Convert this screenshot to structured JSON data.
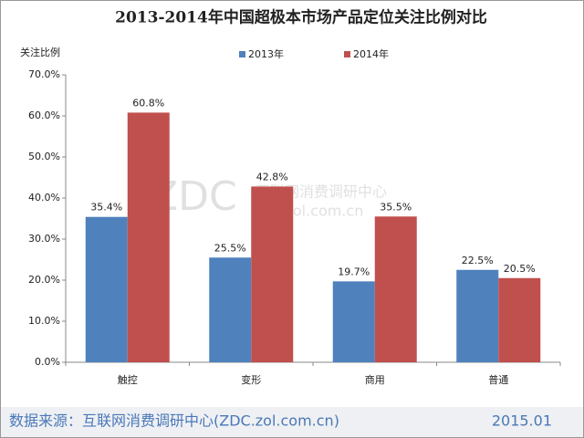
{
  "chart_data": {
    "type": "bar",
    "title": "2013-2014年中国超极本市场产品定位关注比例对比",
    "y_label": "关注比例",
    "categories": [
      "触控",
      "变形",
      "商用",
      "普通"
    ],
    "series": [
      {
        "name": "2013年",
        "color": "#4f81bd",
        "values": [
          35.4,
          25.5,
          19.7,
          22.5
        ],
        "value_labels": [
          "35.4%",
          "25.5%",
          "19.7%",
          "22.5%"
        ]
      },
      {
        "name": "2014年",
        "color": "#c0504d",
        "values": [
          60.8,
          42.8,
          35.5,
          20.5
        ],
        "value_labels": [
          "60.8%",
          "42.8%",
          "35.5%",
          "20.5%"
        ]
      }
    ],
    "ylim": [
      0,
      70
    ],
    "yticks": [
      {
        "value": 0,
        "label": "0.0%"
      },
      {
        "value": 10,
        "label": "10.0%"
      },
      {
        "value": 20,
        "label": "20.0%"
      },
      {
        "value": 30,
        "label": "30.0%"
      },
      {
        "value": 40,
        "label": "40.0%"
      },
      {
        "value": 50,
        "label": "50.0%"
      },
      {
        "value": 60,
        "label": "60.0%"
      },
      {
        "value": 70,
        "label": "70.0%"
      }
    ],
    "grid": false,
    "legend": "top",
    "watermark": [
      "ZDC",
      "互联网消费调研中心",
      "zdc.zol.com.cn"
    ],
    "source": "数据来源：互联网消费调研中心(ZDC.zol.com.cn)",
    "date": "2015.01"
  }
}
